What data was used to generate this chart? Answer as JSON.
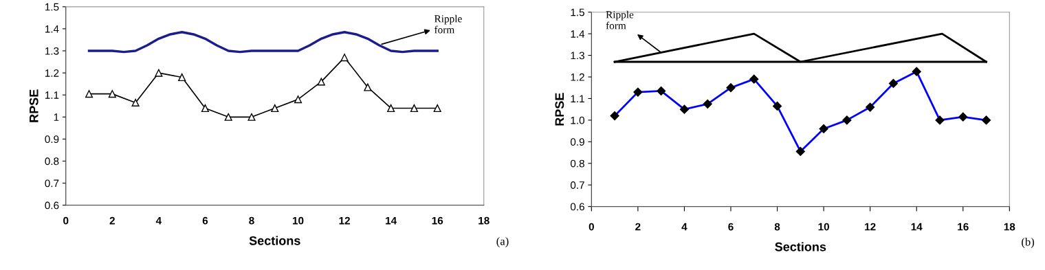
{
  "chart_data": [
    {
      "type": "line",
      "xlabel": "Sections",
      "ylabel": "RPSE",
      "xlim": [
        0,
        18
      ],
      "xticks": [
        0,
        2,
        4,
        6,
        8,
        10,
        12,
        14,
        16,
        18
      ],
      "ylim": [
        0.6,
        1.5
      ],
      "yticks": [
        0.6,
        0.7,
        0.8,
        0.9,
        1,
        1.1,
        1.2,
        1.3,
        1.4,
        1.5
      ],
      "grid": false,
      "legend": false,
      "series": [
        {
          "color": "#1c1c8c",
          "marker": "none",
          "x": [
            1,
            2,
            2.5,
            3,
            3.5,
            4,
            4.5,
            5,
            5.5,
            6,
            6.5,
            7,
            7.5,
            8,
            9,
            10,
            10.5,
            11,
            11.5,
            12,
            12.5,
            13,
            13.5,
            14,
            14.5,
            15,
            16
          ],
          "values": [
            1.3,
            1.3,
            1.295,
            1.3,
            1.325,
            1.355,
            1.375,
            1.385,
            1.375,
            1.355,
            1.325,
            1.3,
            1.295,
            1.3,
            1.3,
            1.3,
            1.325,
            1.355,
            1.375,
            1.385,
            1.375,
            1.355,
            1.325,
            1.3,
            1.295,
            1.3,
            1.3
          ]
        },
        {
          "color": "#000000",
          "marker": "triangle",
          "x": [
            1,
            2,
            3,
            4,
            5,
            6,
            7,
            8,
            9,
            10,
            11,
            12,
            13,
            14,
            15,
            16
          ],
          "values": [
            1.105,
            1.105,
            1.065,
            1.2,
            1.18,
            1.04,
            1.0,
            1.0,
            1.04,
            1.08,
            1.16,
            1.27,
            1.135,
            1.04,
            1.04,
            1.04
          ]
        }
      ],
      "annotations": [
        {
          "text": "Ripple\nform",
          "x": 13.6,
          "y": 1.33
        },
        "(a)"
      ]
    },
    {
      "type": "line",
      "xlabel": "Sections",
      "ylabel": "RPSE",
      "xlim": [
        0,
        18
      ],
      "xticks": [
        0,
        2,
        4,
        6,
        8,
        10,
        12,
        14,
        16,
        18
      ],
      "ylim": [
        0.6,
        1.5
      ],
      "yticks": [
        0.6,
        0.7,
        0.8,
        0.9,
        {
          "value": 1,
          "label": "1.0"
        },
        1.1,
        1.2,
        1.3,
        1.4,
        1.5
      ],
      "grid": false,
      "legend": false,
      "series": [
        {
          "color": "#000000",
          "marker": "none",
          "x": [
            1,
            7,
            9,
            15.1,
            17
          ],
          "values": [
            1.27,
            1.4,
            1.27,
            1.4,
            1.27
          ]
        },
        {
          "color": "#000000",
          "marker": "none",
          "x": [
            1,
            17
          ],
          "values": [
            1.27,
            1.27
          ]
        },
        {
          "color": "#0000ff",
          "marker": "diamond",
          "x": [
            1,
            2,
            3,
            4,
            5,
            6,
            7,
            8,
            9,
            10,
            11,
            12,
            13,
            14,
            15,
            16,
            17
          ],
          "values": [
            1.02,
            1.13,
            1.135,
            1.05,
            1.075,
            1.15,
            1.19,
            1.065,
            0.855,
            0.96,
            1.0,
            1.06,
            1.17,
            1.225,
            1.0,
            1.015,
            1.0
          ]
        }
      ],
      "annotations": [
        {
          "text": "Ripple\nform",
          "x": 3,
          "y": 1.313
        },
        "(b)"
      ]
    }
  ]
}
